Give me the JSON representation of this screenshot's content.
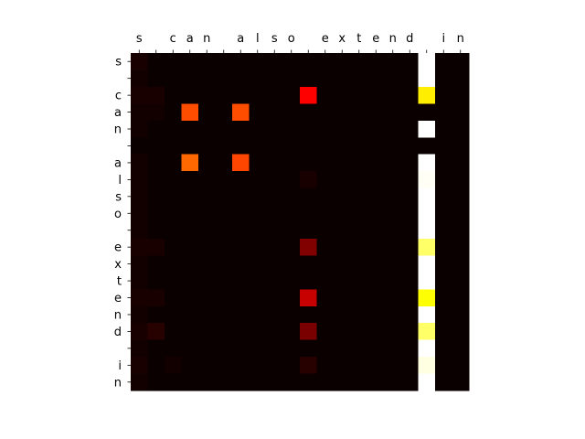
{
  "chart_data": {
    "type": "heatmap",
    "colormap": "hot",
    "value_range": [
      0,
      1
    ],
    "x_tick_labels": [
      "s",
      "",
      "c",
      "a",
      "n",
      "",
      "a",
      "l",
      "s",
      "o",
      "",
      "e",
      "x",
      "t",
      "e",
      "n",
      "d",
      "",
      "i",
      "n"
    ],
    "y_tick_labels": [
      "s",
      "",
      "c",
      "a",
      "n",
      "",
      "a",
      "l",
      "s",
      "o",
      "",
      "e",
      "x",
      "t",
      "e",
      "n",
      "d",
      "",
      "i",
      "n"
    ],
    "x_ticks_position": "top",
    "grid": false,
    "values": [
      [
        0.02,
        0.0,
        0.0,
        0.0,
        0.0,
        0.0,
        0.0,
        0.0,
        0.0,
        0.0,
        0.0,
        0.0,
        0.0,
        0.0,
        0.0,
        0.0,
        0.0,
        1.0,
        0.0,
        0.0
      ],
      [
        0.01,
        0.0,
        0.0,
        0.0,
        0.0,
        0.0,
        0.0,
        0.0,
        0.0,
        0.0,
        0.0,
        0.0,
        0.0,
        0.0,
        0.0,
        0.0,
        0.0,
        1.0,
        0.0,
        0.0
      ],
      [
        0.02,
        0.02,
        0.0,
        0.0,
        0.0,
        0.0,
        0.0,
        0.0,
        0.0,
        0.0,
        0.35,
        0.0,
        0.0,
        0.0,
        0.0,
        0.0,
        0.0,
        0.72,
        0.0,
        0.0
      ],
      [
        0.01,
        0.01,
        0.0,
        0.48,
        0.0,
        0.0,
        0.48,
        0.0,
        0.0,
        0.0,
        0.0,
        0.0,
        0.0,
        0.0,
        0.0,
        0.0,
        0.0,
        0.0,
        0.0,
        0.0
      ],
      [
        0.01,
        0.0,
        0.0,
        0.0,
        0.0,
        0.0,
        0.0,
        0.0,
        0.0,
        0.0,
        0.0,
        0.0,
        0.0,
        0.0,
        0.0,
        0.0,
        0.0,
        1.0,
        0.0,
        0.0
      ],
      [
        0.0,
        0.0,
        0.0,
        0.0,
        0.0,
        0.0,
        0.0,
        0.0,
        0.0,
        0.0,
        0.0,
        0.0,
        0.0,
        0.0,
        0.0,
        0.0,
        0.0,
        0.0,
        0.0,
        0.0
      ],
      [
        0.01,
        0.0,
        0.0,
        0.52,
        0.0,
        0.0,
        0.47,
        0.0,
        0.0,
        0.0,
        0.0,
        0.0,
        0.0,
        0.0,
        0.0,
        0.0,
        0.0,
        1.0,
        0.0,
        0.0
      ],
      [
        0.01,
        0.0,
        0.0,
        0.0,
        0.0,
        0.0,
        0.0,
        0.0,
        0.0,
        0.0,
        0.02,
        0.0,
        0.0,
        0.0,
        0.0,
        0.0,
        0.0,
        0.99,
        0.0,
        0.0
      ],
      [
        0.01,
        0.0,
        0.0,
        0.0,
        0.0,
        0.0,
        0.0,
        0.0,
        0.0,
        0.0,
        0.0,
        0.0,
        0.0,
        0.0,
        0.0,
        0.0,
        0.0,
        1.0,
        0.0,
        0.0
      ],
      [
        0.01,
        0.0,
        0.0,
        0.0,
        0.0,
        0.0,
        0.0,
        0.0,
        0.0,
        0.0,
        0.0,
        0.0,
        0.0,
        0.0,
        0.0,
        0.0,
        0.0,
        1.0,
        0.0,
        0.0
      ],
      [
        0.01,
        0.0,
        0.0,
        0.0,
        0.0,
        0.0,
        0.0,
        0.0,
        0.0,
        0.0,
        0.0,
        0.0,
        0.0,
        0.0,
        0.0,
        0.0,
        0.0,
        1.0,
        0.0,
        0.0
      ],
      [
        0.02,
        0.02,
        0.0,
        0.0,
        0.0,
        0.0,
        0.0,
        0.0,
        0.0,
        0.0,
        0.17,
        0.0,
        0.0,
        0.0,
        0.0,
        0.0,
        0.0,
        0.85,
        0.0,
        0.0
      ],
      [
        0.01,
        0.0,
        0.0,
        0.0,
        0.0,
        0.0,
        0.0,
        0.0,
        0.0,
        0.0,
        0.0,
        0.0,
        0.0,
        0.0,
        0.0,
        0.0,
        0.0,
        1.0,
        0.0,
        0.0
      ],
      [
        0.01,
        0.0,
        0.0,
        0.0,
        0.0,
        0.0,
        0.0,
        0.0,
        0.0,
        0.0,
        0.0,
        0.0,
        0.0,
        0.0,
        0.0,
        0.0,
        0.0,
        1.0,
        0.0,
        0.0
      ],
      [
        0.02,
        0.02,
        0.0,
        0.0,
        0.0,
        0.0,
        0.0,
        0.0,
        0.0,
        0.0,
        0.27,
        0.0,
        0.0,
        0.0,
        0.0,
        0.0,
        0.0,
        0.75,
        0.0,
        0.0
      ],
      [
        0.01,
        0.0,
        0.0,
        0.0,
        0.0,
        0.0,
        0.0,
        0.0,
        0.0,
        0.0,
        0.0,
        0.0,
        0.0,
        0.0,
        0.0,
        0.0,
        0.0,
        1.0,
        0.0,
        0.0
      ],
      [
        0.02,
        0.04,
        0.0,
        0.0,
        0.0,
        0.0,
        0.0,
        0.0,
        0.0,
        0.0,
        0.16,
        0.0,
        0.0,
        0.0,
        0.0,
        0.0,
        0.0,
        0.85,
        0.0,
        0.0
      ],
      [
        0.01,
        0.0,
        0.0,
        0.0,
        0.0,
        0.0,
        0.0,
        0.0,
        0.0,
        0.0,
        0.0,
        0.0,
        0.0,
        0.0,
        0.0,
        0.0,
        0.0,
        1.0,
        0.0,
        0.0
      ],
      [
        0.02,
        0.0,
        0.01,
        0.0,
        0.0,
        0.0,
        0.0,
        0.0,
        0.0,
        0.0,
        0.04,
        0.0,
        0.0,
        0.0,
        0.0,
        0.0,
        0.0,
        0.97,
        0.0,
        0.0
      ],
      [
        0.01,
        0.0,
        0.0,
        0.0,
        0.0,
        0.0,
        0.0,
        0.0,
        0.0,
        0.0,
        0.0,
        0.0,
        0.0,
        0.0,
        0.0,
        0.0,
        0.0,
        1.0,
        0.0,
        0.0
      ]
    ]
  }
}
